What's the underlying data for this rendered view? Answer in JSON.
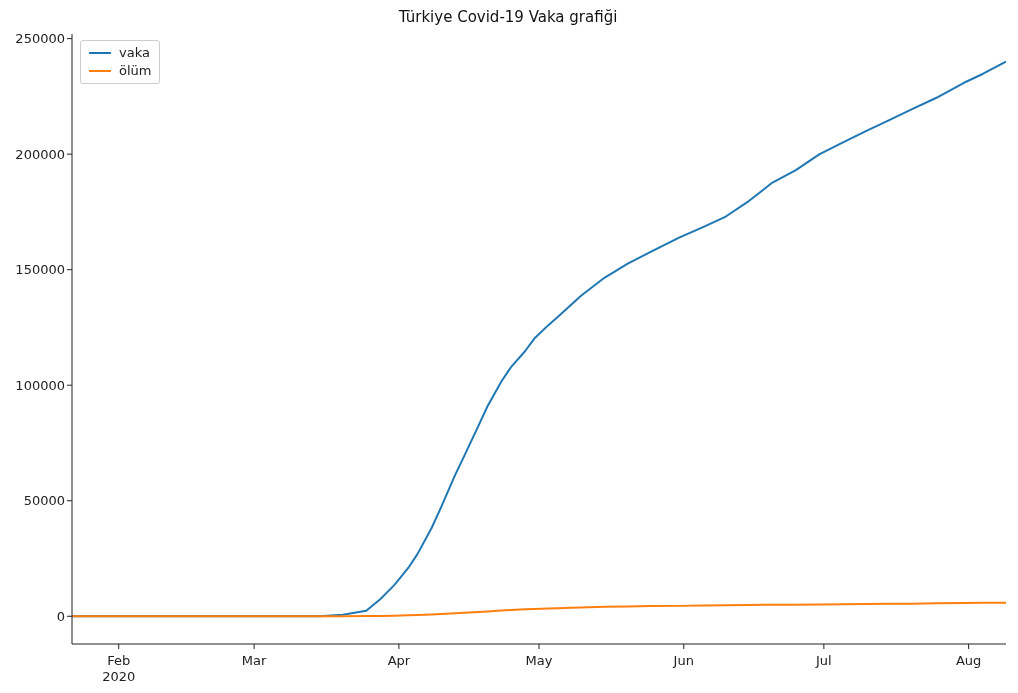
{
  "chart_data": {
    "type": "line",
    "title": "Türkiye Covid-19 Vaka grafiği",
    "x": [
      "2020-01-22",
      "2020-03-10",
      "2020-03-15",
      "2020-03-20",
      "2020-03-25",
      "2020-03-28",
      "2020-03-31",
      "2020-04-03",
      "2020-04-05",
      "2020-04-08",
      "2020-04-10",
      "2020-04-13",
      "2020-04-15",
      "2020-04-18",
      "2020-04-20",
      "2020-04-23",
      "2020-04-25",
      "2020-04-28",
      "2020-04-30",
      "2020-05-03",
      "2020-05-05",
      "2020-05-08",
      "2020-05-10",
      "2020-05-15",
      "2020-05-20",
      "2020-05-25",
      "2020-05-31",
      "2020-06-05",
      "2020-06-10",
      "2020-06-15",
      "2020-06-20",
      "2020-06-25",
      "2020-06-30",
      "2020-07-05",
      "2020-07-10",
      "2020-07-15",
      "2020-07-20",
      "2020-07-25",
      "2020-07-31",
      "2020-08-04",
      "2020-08-09"
    ],
    "series": [
      {
        "name": "vaka",
        "color": "#1f77b4",
        "values": [
          0,
          0,
          0,
          700,
          2400,
          7400,
          13500,
          20900,
          27000,
          38200,
          47000,
          61000,
          69400,
          82300,
          91000,
          101800,
          107800,
          114700,
          120200,
          126000,
          129500,
          135000,
          138700,
          146500,
          152600,
          157800,
          163900,
          168300,
          173000,
          179800,
          187700,
          193100,
          199900,
          205000,
          210000,
          214700,
          219600,
          224300,
          230900,
          234700,
          240000
        ]
      },
      {
        "name": "ölüm",
        "color": "#ff7f0e",
        "values": [
          0,
          0,
          0,
          0,
          100,
          100,
          200,
          400,
          600,
          800,
          1000,
          1300,
          1500,
          1900,
          2100,
          2500,
          2700,
          3000,
          3200,
          3400,
          3500,
          3700,
          3800,
          4100,
          4200,
          4400,
          4500,
          4700,
          4800,
          4900,
          5000,
          5000,
          5100,
          5200,
          5300,
          5400,
          5400,
          5600,
          5700,
          5800,
          5900
        ]
      }
    ],
    "xlim": [
      "2020-01-22",
      "2020-08-09"
    ],
    "xticks": [
      {
        "value": "2020-02-01",
        "label": "Feb\n2020"
      },
      {
        "value": "2020-03-01",
        "label": "Mar"
      },
      {
        "value": "2020-04-01",
        "label": "Apr"
      },
      {
        "value": "2020-05-01",
        "label": "May"
      },
      {
        "value": "2020-06-01",
        "label": "Jun"
      },
      {
        "value": "2020-07-01",
        "label": "Jul"
      },
      {
        "value": "2020-08-01",
        "label": "Aug"
      }
    ],
    "ylim": [
      -12000,
      252000
    ],
    "yticks": [
      0,
      50000,
      100000,
      150000,
      200000,
      250000
    ],
    "legend": "top left",
    "grid": false,
    "marker": "none",
    "line_style": "solid"
  }
}
